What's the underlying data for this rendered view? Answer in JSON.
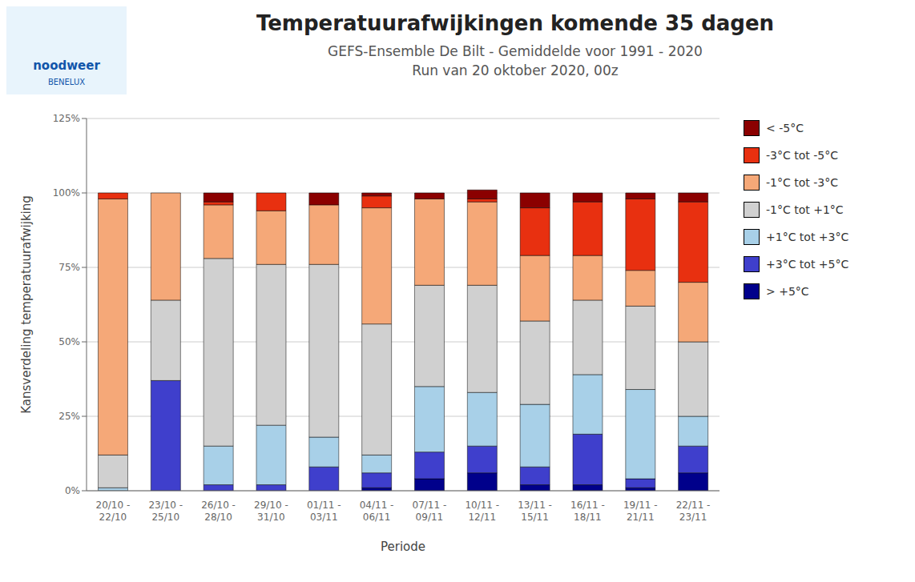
{
  "chart_data": {
    "type": "bar",
    "stacked": true,
    "title": "Temperatuurafwijkingen komende 35 dagen",
    "subtitle": [
      "GEFS-Ensemble De Bilt - Gemiddelde voor 1991 - 2020",
      "Run van 20 oktober 2020, 00z"
    ],
    "annotations": [
      "noodweer",
      "BENELUX"
    ],
    "x_label": "Periode",
    "y_label": "Kansverdeling temperatuurafwijking",
    "categories": [
      "20/10 -\n22/10",
      "23/10 -\n25/10",
      "26/10 -\n28/10",
      "29/10 -\n31/10",
      "01/11 -\n03/11",
      "04/11 -\n06/11",
      "07/11 -\n09/11",
      "10/11 -\n12/11",
      "13/11 -\n15/11",
      "16/11 -\n18/11",
      "19/11 -\n21/11",
      "22/11 -\n23/11"
    ],
    "series": [
      {
        "name": "> +5°C",
        "color": "#00008B",
        "values": [
          0,
          0,
          0,
          0,
          0,
          1,
          4,
          6,
          2,
          2,
          1,
          6
        ]
      },
      {
        "name": "+3°C tot +5°C",
        "color": "#3F3FCC",
        "values": [
          0,
          37,
          2,
          2,
          8,
          5,
          9,
          9,
          6,
          17,
          3,
          9
        ]
      },
      {
        "name": "+1°C tot +3°C",
        "color": "#A8D0E8",
        "values": [
          1,
          0,
          13,
          20,
          10,
          6,
          22,
          18,
          21,
          20,
          30,
          10
        ]
      },
      {
        "name": "-1°C tot +1°C",
        "color": "#D0D0D0",
        "values": [
          11,
          27,
          63,
          54,
          58,
          44,
          34,
          36,
          28,
          25,
          28,
          25
        ]
      },
      {
        "name": "-1°C tot -3°C",
        "color": "#F5A878",
        "values": [
          86,
          36,
          18,
          18,
          20,
          39,
          29,
          28,
          22,
          15,
          12,
          20
        ]
      },
      {
        "name": "-3°C tot -5°C",
        "color": "#E83010",
        "values": [
          2,
          0,
          1,
          6,
          0,
          4,
          0,
          1,
          16,
          18,
          24,
          27
        ]
      },
      {
        "name": "< -5°C",
        "color": "#8B0000",
        "values": [
          0,
          0,
          3,
          0,
          4,
          1,
          2,
          3,
          5,
          3,
          2,
          3
        ]
      }
    ],
    "ylim": [
      0,
      125
    ],
    "yticks": [
      {
        "value": 0,
        "label": "0%"
      },
      {
        "value": 25,
        "label": "25%"
      },
      {
        "value": 50,
        "label": "50%"
      },
      {
        "value": 75,
        "label": "75%"
      },
      {
        "value": 100,
        "label": "100%"
      },
      {
        "value": 125,
        "label": "125%"
      }
    ],
    "grid": true,
    "legend": "right"
  }
}
